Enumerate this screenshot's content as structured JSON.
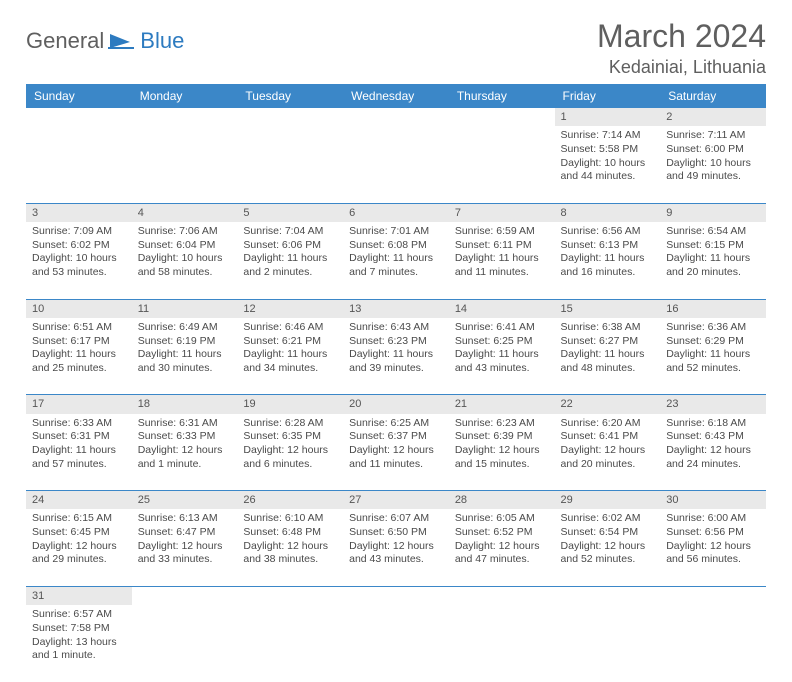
{
  "brand": {
    "part1": "General",
    "part2": "Blue"
  },
  "title": "March 2024",
  "location": "Kedainiai, Lithuania",
  "daysOfWeek": [
    "Sunday",
    "Monday",
    "Tuesday",
    "Wednesday",
    "Thursday",
    "Friday",
    "Saturday"
  ],
  "colors": {
    "headerBlue": "#3b87c8",
    "grayBg": "#e9e9e9",
    "textGray": "#5f5f5f"
  },
  "weeks": [
    [
      null,
      null,
      null,
      null,
      null,
      {
        "n": "1",
        "sr": "Sunrise: 7:14 AM",
        "ss": "Sunset: 5:58 PM",
        "d1": "Daylight: 10 hours",
        "d2": "and 44 minutes."
      },
      {
        "n": "2",
        "sr": "Sunrise: 7:11 AM",
        "ss": "Sunset: 6:00 PM",
        "d1": "Daylight: 10 hours",
        "d2": "and 49 minutes."
      }
    ],
    [
      {
        "n": "3",
        "sr": "Sunrise: 7:09 AM",
        "ss": "Sunset: 6:02 PM",
        "d1": "Daylight: 10 hours",
        "d2": "and 53 minutes."
      },
      {
        "n": "4",
        "sr": "Sunrise: 7:06 AM",
        "ss": "Sunset: 6:04 PM",
        "d1": "Daylight: 10 hours",
        "d2": "and 58 minutes."
      },
      {
        "n": "5",
        "sr": "Sunrise: 7:04 AM",
        "ss": "Sunset: 6:06 PM",
        "d1": "Daylight: 11 hours",
        "d2": "and 2 minutes."
      },
      {
        "n": "6",
        "sr": "Sunrise: 7:01 AM",
        "ss": "Sunset: 6:08 PM",
        "d1": "Daylight: 11 hours",
        "d2": "and 7 minutes."
      },
      {
        "n": "7",
        "sr": "Sunrise: 6:59 AM",
        "ss": "Sunset: 6:11 PM",
        "d1": "Daylight: 11 hours",
        "d2": "and 11 minutes."
      },
      {
        "n": "8",
        "sr": "Sunrise: 6:56 AM",
        "ss": "Sunset: 6:13 PM",
        "d1": "Daylight: 11 hours",
        "d2": "and 16 minutes."
      },
      {
        "n": "9",
        "sr": "Sunrise: 6:54 AM",
        "ss": "Sunset: 6:15 PM",
        "d1": "Daylight: 11 hours",
        "d2": "and 20 minutes."
      }
    ],
    [
      {
        "n": "10",
        "sr": "Sunrise: 6:51 AM",
        "ss": "Sunset: 6:17 PM",
        "d1": "Daylight: 11 hours",
        "d2": "and 25 minutes."
      },
      {
        "n": "11",
        "sr": "Sunrise: 6:49 AM",
        "ss": "Sunset: 6:19 PM",
        "d1": "Daylight: 11 hours",
        "d2": "and 30 minutes."
      },
      {
        "n": "12",
        "sr": "Sunrise: 6:46 AM",
        "ss": "Sunset: 6:21 PM",
        "d1": "Daylight: 11 hours",
        "d2": "and 34 minutes."
      },
      {
        "n": "13",
        "sr": "Sunrise: 6:43 AM",
        "ss": "Sunset: 6:23 PM",
        "d1": "Daylight: 11 hours",
        "d2": "and 39 minutes."
      },
      {
        "n": "14",
        "sr": "Sunrise: 6:41 AM",
        "ss": "Sunset: 6:25 PM",
        "d1": "Daylight: 11 hours",
        "d2": "and 43 minutes."
      },
      {
        "n": "15",
        "sr": "Sunrise: 6:38 AM",
        "ss": "Sunset: 6:27 PM",
        "d1": "Daylight: 11 hours",
        "d2": "and 48 minutes."
      },
      {
        "n": "16",
        "sr": "Sunrise: 6:36 AM",
        "ss": "Sunset: 6:29 PM",
        "d1": "Daylight: 11 hours",
        "d2": "and 52 minutes."
      }
    ],
    [
      {
        "n": "17",
        "sr": "Sunrise: 6:33 AM",
        "ss": "Sunset: 6:31 PM",
        "d1": "Daylight: 11 hours",
        "d2": "and 57 minutes."
      },
      {
        "n": "18",
        "sr": "Sunrise: 6:31 AM",
        "ss": "Sunset: 6:33 PM",
        "d1": "Daylight: 12 hours",
        "d2": "and 1 minute."
      },
      {
        "n": "19",
        "sr": "Sunrise: 6:28 AM",
        "ss": "Sunset: 6:35 PM",
        "d1": "Daylight: 12 hours",
        "d2": "and 6 minutes."
      },
      {
        "n": "20",
        "sr": "Sunrise: 6:25 AM",
        "ss": "Sunset: 6:37 PM",
        "d1": "Daylight: 12 hours",
        "d2": "and 11 minutes."
      },
      {
        "n": "21",
        "sr": "Sunrise: 6:23 AM",
        "ss": "Sunset: 6:39 PM",
        "d1": "Daylight: 12 hours",
        "d2": "and 15 minutes."
      },
      {
        "n": "22",
        "sr": "Sunrise: 6:20 AM",
        "ss": "Sunset: 6:41 PM",
        "d1": "Daylight: 12 hours",
        "d2": "and 20 minutes."
      },
      {
        "n": "23",
        "sr": "Sunrise: 6:18 AM",
        "ss": "Sunset: 6:43 PM",
        "d1": "Daylight: 12 hours",
        "d2": "and 24 minutes."
      }
    ],
    [
      {
        "n": "24",
        "sr": "Sunrise: 6:15 AM",
        "ss": "Sunset: 6:45 PM",
        "d1": "Daylight: 12 hours",
        "d2": "and 29 minutes."
      },
      {
        "n": "25",
        "sr": "Sunrise: 6:13 AM",
        "ss": "Sunset: 6:47 PM",
        "d1": "Daylight: 12 hours",
        "d2": "and 33 minutes."
      },
      {
        "n": "26",
        "sr": "Sunrise: 6:10 AM",
        "ss": "Sunset: 6:48 PM",
        "d1": "Daylight: 12 hours",
        "d2": "and 38 minutes."
      },
      {
        "n": "27",
        "sr": "Sunrise: 6:07 AM",
        "ss": "Sunset: 6:50 PM",
        "d1": "Daylight: 12 hours",
        "d2": "and 43 minutes."
      },
      {
        "n": "28",
        "sr": "Sunrise: 6:05 AM",
        "ss": "Sunset: 6:52 PM",
        "d1": "Daylight: 12 hours",
        "d2": "and 47 minutes."
      },
      {
        "n": "29",
        "sr": "Sunrise: 6:02 AM",
        "ss": "Sunset: 6:54 PM",
        "d1": "Daylight: 12 hours",
        "d2": "and 52 minutes."
      },
      {
        "n": "30",
        "sr": "Sunrise: 6:00 AM",
        "ss": "Sunset: 6:56 PM",
        "d1": "Daylight: 12 hours",
        "d2": "and 56 minutes."
      }
    ],
    [
      {
        "n": "31",
        "sr": "Sunrise: 6:57 AM",
        "ss": "Sunset: 7:58 PM",
        "d1": "Daylight: 13 hours",
        "d2": "and 1 minute."
      },
      null,
      null,
      null,
      null,
      null,
      null
    ]
  ]
}
